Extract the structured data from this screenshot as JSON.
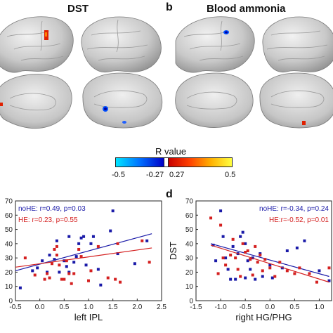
{
  "panels": {
    "a": {
      "title": "DST"
    },
    "b": {
      "letter": "b",
      "title": "Blood ammonia"
    },
    "d": {
      "letter": "d"
    }
  },
  "colorbar": {
    "title": "R value",
    "neg_min": "-0.5",
    "neg_max": "-0.27",
    "pos_min": "0.27",
    "pos_max": "0.5",
    "neg_colors": [
      "#00e5ff",
      "#0070ff",
      "#0000c8"
    ],
    "pos_colors": [
      "#c80000",
      "#ff4000",
      "#ffb000",
      "#ffff40"
    ]
  },
  "chart_data": [
    {
      "type": "scatter",
      "title": "",
      "xlabel": "left IPL",
      "ylabel": "",
      "xlim": [
        -0.5,
        2.5
      ],
      "ylim": [
        0,
        70
      ],
      "xticks": [
        "-0.5",
        "0.0",
        "0.5",
        "1.0",
        "1.5",
        "2.0",
        "2.5"
      ],
      "yticks": [
        "0",
        "10",
        "20",
        "30",
        "40",
        "50",
        "60",
        "70"
      ],
      "grid": false,
      "legend": "top-left",
      "annotations": [
        "noHE: r=0.49, p=0.03",
        "HE: r=0.23, p=0.55"
      ],
      "series": [
        {
          "name": "noHE",
          "color": "#1a1aa8",
          "points": [
            [
              -0.4,
              9
            ],
            [
              -0.15,
              21
            ],
            [
              -0.05,
              23
            ],
            [
              0.05,
              28
            ],
            [
              0.15,
              20
            ],
            [
              0.2,
              32
            ],
            [
              0.3,
              29
            ],
            [
              0.35,
              42
            ],
            [
              0.4,
              20
            ],
            [
              0.5,
              28
            ],
            [
              0.55,
              24
            ],
            [
              0.6,
              20
            ],
            [
              0.6,
              45
            ],
            [
              0.7,
              27
            ],
            [
              0.75,
              31
            ],
            [
              0.8,
              40
            ],
            [
              0.85,
              44
            ],
            [
              0.9,
              45
            ],
            [
              0.95,
              25
            ],
            [
              1.05,
              40
            ],
            [
              1.1,
              45
            ],
            [
              1.2,
              22
            ],
            [
              1.25,
              11
            ],
            [
              1.45,
              49
            ],
            [
              1.5,
              63
            ],
            [
              1.6,
              33
            ],
            [
              1.95,
              26
            ],
            [
              2.2,
              42
            ]
          ],
          "fit": {
            "x": [
              -0.5,
              2.3
            ],
            "y": [
              21,
              47
            ]
          }
        },
        {
          "name": "HE",
          "color": "#d42020",
          "points": [
            [
              -0.3,
              30
            ],
            [
              -0.1,
              18
            ],
            [
              0.1,
              15
            ],
            [
              0.15,
              19
            ],
            [
              0.2,
              16
            ],
            [
              0.25,
              26
            ],
            [
              0.3,
              36
            ],
            [
              0.35,
              38
            ],
            [
              0.35,
              32
            ],
            [
              0.4,
              25
            ],
            [
              0.45,
              15
            ],
            [
              0.5,
              15
            ],
            [
              0.55,
              28
            ],
            [
              0.6,
              19
            ],
            [
              0.65,
              12
            ],
            [
              0.7,
              19
            ],
            [
              0.8,
              36
            ],
            [
              0.85,
              31
            ],
            [
              1.0,
              14
            ],
            [
              1.05,
              21
            ],
            [
              1.2,
              38
            ],
            [
              1.4,
              16
            ],
            [
              1.55,
              15
            ],
            [
              1.6,
              40
            ],
            [
              1.65,
              13
            ],
            [
              2.1,
              42
            ],
            [
              2.25,
              27
            ]
          ],
          "fit": {
            "x": [
              -0.5,
              2.3
            ],
            "y": [
              23.5,
              37
            ]
          }
        }
      ]
    },
    {
      "type": "scatter",
      "title": "",
      "xlabel": "right HG/PHG",
      "ylabel": "DST",
      "xlim": [
        -1.5,
        1.25
      ],
      "ylim": [
        0,
        70
      ],
      "xticks": [
        "-1.5",
        "-1.0",
        "-0.5",
        "0.0",
        "0.5",
        "1.0"
      ],
      "yticks": [
        "0",
        "10",
        "20",
        "30",
        "40",
        "50",
        "60",
        "70"
      ],
      "grid": false,
      "legend": "top-right",
      "annotations": [
        "noHE: r=-0.34, p=0.24",
        "HE:r=-0.52, p=0.01"
      ],
      "series": [
        {
          "name": "noHE",
          "color": "#1a1aa8",
          "points": [
            [
              -1.15,
              39
            ],
            [
              -1.1,
              28
            ],
            [
              -1.0,
              63
            ],
            [
              -0.95,
              45
            ],
            [
              -0.9,
              30
            ],
            [
              -0.85,
              22
            ],
            [
              -0.8,
              15
            ],
            [
              -0.75,
              38
            ],
            [
              -0.7,
              15
            ],
            [
              -0.65,
              33
            ],
            [
              -0.6,
              45
            ],
            [
              -0.55,
              48
            ],
            [
              -0.5,
              16
            ],
            [
              -0.5,
              40
            ],
            [
              -0.45,
              28
            ],
            [
              -0.4,
              22
            ],
            [
              -0.35,
              30
            ],
            [
              -0.3,
              15
            ],
            [
              -0.2,
              33
            ],
            [
              -0.15,
              17
            ],
            [
              0.0,
              25
            ],
            [
              0.05,
              16
            ],
            [
              0.25,
              23
            ],
            [
              0.35,
              35
            ],
            [
              0.55,
              37
            ],
            [
              0.7,
              42
            ],
            [
              1.0,
              21
            ],
            [
              1.2,
              14
            ]
          ],
          "fit": {
            "x": [
              -1.2,
              1.2
            ],
            "y": [
              40,
              17
            ]
          }
        },
        {
          "name": "HE",
          "color": "#d42020",
          "points": [
            [
              -1.2,
              58
            ],
            [
              -1.05,
              19
            ],
            [
              -1.0,
              53
            ],
            [
              -0.95,
              30
            ],
            [
              -0.9,
              25
            ],
            [
              -0.8,
              32
            ],
            [
              -0.75,
              43
            ],
            [
              -0.7,
              30
            ],
            [
              -0.65,
              22
            ],
            [
              -0.6,
              17
            ],
            [
              -0.55,
              40
            ],
            [
              -0.5,
              34
            ],
            [
              -0.45,
              35
            ],
            [
              -0.4,
              29
            ],
            [
              -0.35,
              18
            ],
            [
              -0.3,
              38
            ],
            [
              -0.25,
              27
            ],
            [
              -0.2,
              32
            ],
            [
              -0.15,
              21
            ],
            [
              -0.1,
              29
            ],
            [
              0.0,
              23
            ],
            [
              0.1,
              17
            ],
            [
              0.2,
              27
            ],
            [
              0.35,
              21
            ],
            [
              0.5,
              19
            ],
            [
              0.6,
              23
            ],
            [
              0.8,
              19
            ],
            [
              0.95,
              13
            ],
            [
              1.2,
              23
            ]
          ],
          "fit": {
            "x": [
              -1.2,
              1.2
            ],
            "y": [
              39,
              13
            ]
          }
        }
      ]
    }
  ]
}
